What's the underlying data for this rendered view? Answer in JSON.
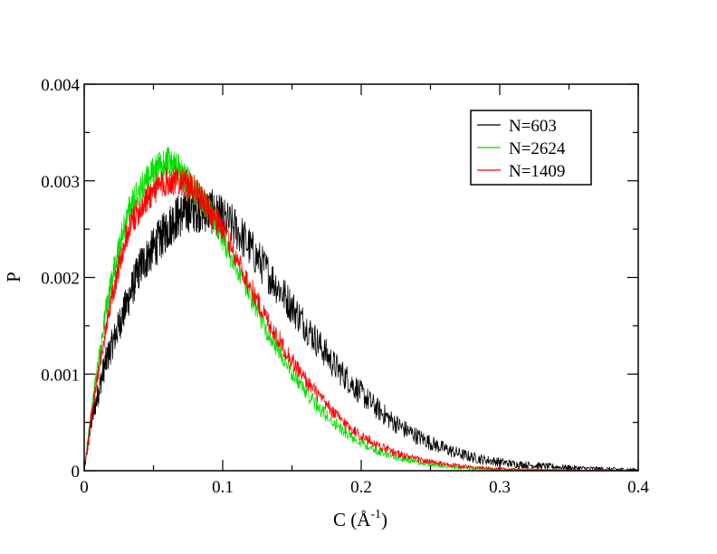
{
  "chart_data": {
    "type": "line",
    "title": "",
    "xlabel": "C (Å",
    "xlabel_sup": "-1",
    "xlabel_close": ")",
    "ylabel": "P",
    "xlim": [
      0,
      0.4
    ],
    "ylim": [
      0,
      0.004
    ],
    "x_ticks": [
      {
        "value": 0,
        "label": "0"
      },
      {
        "value": 0.1,
        "label": "0.1"
      },
      {
        "value": 0.2,
        "label": "0.2"
      },
      {
        "value": 0.3,
        "label": "0.3"
      },
      {
        "value": 0.4,
        "label": "0.4"
      }
    ],
    "y_ticks": [
      {
        "value": 0,
        "label": "0"
      },
      {
        "value": 0.001,
        "label": "0.001"
      },
      {
        "value": 0.002,
        "label": "0.002"
      },
      {
        "value": 0.003,
        "label": "0.003"
      },
      {
        "value": 0.004,
        "label": "0.004"
      }
    ],
    "x_minor_step": 0.05,
    "y_minor_step": 0.0005,
    "grid": false,
    "legend_position": "top-right",
    "series": [
      {
        "name": "N=603",
        "color": "#000000",
        "x": [
          0,
          0.005,
          0.01,
          0.015,
          0.02,
          0.025,
          0.03,
          0.035,
          0.04,
          0.045,
          0.05,
          0.055,
          0.06,
          0.065,
          0.07,
          0.075,
          0.08,
          0.085,
          0.09,
          0.095,
          0.1,
          0.11,
          0.12,
          0.13,
          0.14,
          0.15,
          0.16,
          0.17,
          0.18,
          0.19,
          0.2,
          0.21,
          0.22,
          0.23,
          0.24,
          0.25,
          0.26,
          0.27,
          0.28,
          0.29,
          0.3,
          0.31,
          0.32,
          0.33,
          0.34,
          0.35,
          0.36,
          0.37,
          0.38,
          0.39,
          0.4
        ],
        "y": [
          0,
          0.0005,
          0.0008,
          0.0011,
          0.0013,
          0.0015,
          0.0017,
          0.0019,
          0.0021,
          0.0022,
          0.0023,
          0.0024,
          0.0025,
          0.0026,
          0.00265,
          0.0027,
          0.0027,
          0.0027,
          0.0027,
          0.00265,
          0.0026,
          0.0025,
          0.0023,
          0.0021,
          0.0019,
          0.0017,
          0.0015,
          0.0013,
          0.0011,
          0.00095,
          0.0008,
          0.00066,
          0.00054,
          0.00044,
          0.00036,
          0.00029,
          0.00023,
          0.00018,
          0.00014,
          0.00011,
          9e-05,
          7e-05,
          6e-05,
          5e-05,
          4e-05,
          3e-05,
          2.5e-05,
          2e-05,
          1.6e-05,
          1.2e-05,
          1e-05
        ]
      },
      {
        "name": "N=2624",
        "color": "#00e000",
        "x": [
          0,
          0.005,
          0.01,
          0.015,
          0.02,
          0.025,
          0.03,
          0.035,
          0.04,
          0.045,
          0.05,
          0.055,
          0.06,
          0.065,
          0.07,
          0.075,
          0.08,
          0.085,
          0.09,
          0.095,
          0.1,
          0.11,
          0.12,
          0.13,
          0.14,
          0.15,
          0.16,
          0.17,
          0.18,
          0.19,
          0.2,
          0.21,
          0.22,
          0.23,
          0.24,
          0.25,
          0.26,
          0.27,
          0.28,
          0.29,
          0.3,
          0.31,
          0.32,
          0.33,
          0.34,
          0.35,
          0.36,
          0.37,
          0.38,
          0.39,
          0.4
        ],
        "y": [
          0,
          0.0006,
          0.0011,
          0.0016,
          0.002,
          0.0023,
          0.0026,
          0.0028,
          0.0029,
          0.003,
          0.0031,
          0.00315,
          0.0032,
          0.00315,
          0.0031,
          0.003,
          0.0029,
          0.0028,
          0.0027,
          0.00255,
          0.0024,
          0.0021,
          0.0018,
          0.0015,
          0.00125,
          0.00102,
          0.00082,
          0.00064,
          0.0005,
          0.00038,
          0.00029,
          0.00022,
          0.00016,
          0.00012,
          9e-05,
          6.5e-05,
          4.8e-05,
          3.5e-05,
          2.5e-05,
          1.8e-05,
          1.3e-05,
          1e-05,
          8e-06,
          6e-06,
          5e-06,
          4e-06,
          3e-06,
          2e-06,
          2e-06,
          1e-06,
          1e-06
        ]
      },
      {
        "name": "N=1409",
        "color": "#ff0000",
        "x": [
          0,
          0.005,
          0.01,
          0.015,
          0.02,
          0.025,
          0.03,
          0.035,
          0.04,
          0.045,
          0.05,
          0.055,
          0.06,
          0.065,
          0.07,
          0.075,
          0.08,
          0.085,
          0.09,
          0.095,
          0.1,
          0.11,
          0.12,
          0.13,
          0.14,
          0.15,
          0.16,
          0.17,
          0.18,
          0.19,
          0.2,
          0.21,
          0.22,
          0.23,
          0.24,
          0.25,
          0.26,
          0.27,
          0.28,
          0.29,
          0.3,
          0.31,
          0.32,
          0.33,
          0.34,
          0.35,
          0.36,
          0.37,
          0.38,
          0.39,
          0.4
        ],
        "y": [
          0,
          0.00055,
          0.001,
          0.0014,
          0.0018,
          0.0021,
          0.0024,
          0.0026,
          0.0027,
          0.0028,
          0.0029,
          0.00295,
          0.003,
          0.003,
          0.003,
          0.00295,
          0.0029,
          0.0028,
          0.0027,
          0.0026,
          0.0025,
          0.0022,
          0.0019,
          0.00162,
          0.00137,
          0.00114,
          0.00094,
          0.00076,
          0.0006,
          0.00047,
          0.00036,
          0.00028,
          0.00021,
          0.00016,
          0.00012,
          9e-05,
          6.6e-05,
          4.9e-05,
          3.6e-05,
          2.6e-05,
          1.9e-05,
          1.4e-05,
          1e-05,
          8e-06,
          6e-06,
          4e-06,
          3e-06,
          2e-06,
          2e-06,
          1e-06,
          1e-06
        ]
      }
    ]
  }
}
